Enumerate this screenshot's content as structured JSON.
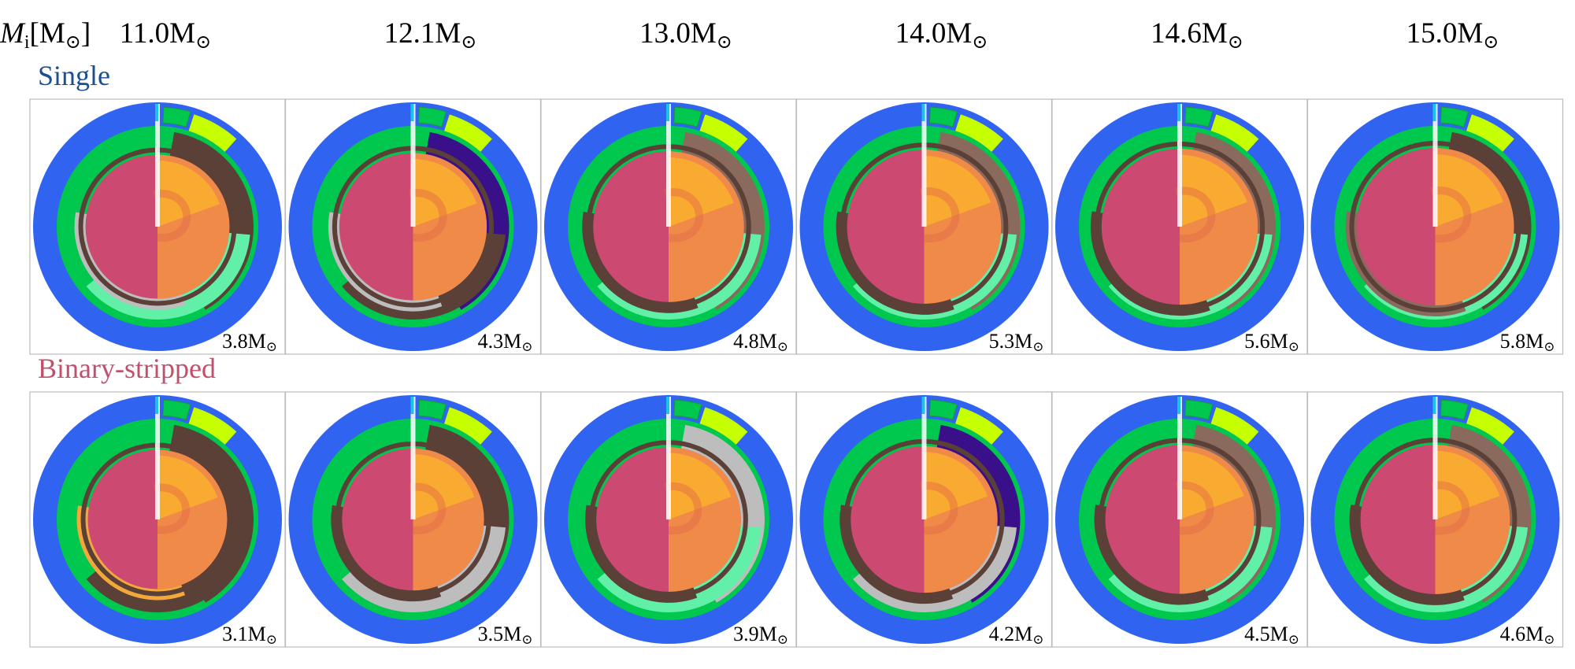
{
  "chart_data": {
    "type": "other",
    "description_type": "kippenhahn-style circular composition diagrams, one per model",
    "row_header": {
      "symbol": "M",
      "subscript": "i",
      "unit": "[M",
      "unit_sym": "⊙",
      "unit_close": "]"
    },
    "columns": [
      {
        "mass": 11.0,
        "label": "11.0M",
        "sun": "⊙"
      },
      {
        "mass": 12.1,
        "label": "12.1M",
        "sun": "⊙"
      },
      {
        "mass": 13.0,
        "label": "13.0M",
        "sun": "⊙"
      },
      {
        "mass": 14.0,
        "label": "14.0M",
        "sun": "⊙"
      },
      {
        "mass": 14.6,
        "label": "14.6M",
        "sun": "⊙"
      },
      {
        "mass": 15.0,
        "label": "15.0M",
        "sun": "⊙"
      }
    ],
    "rows": [
      {
        "name": "Single",
        "color": "#1b4f8f",
        "panels": [
          {
            "final_mass": 3.8,
            "label": "3.8M",
            "sun": "⊙",
            "shell_hi": "#5a4036",
            "shell_lo": "#62f0a8",
            "shell_mid": "#bdbdbd"
          },
          {
            "final_mass": 4.3,
            "label": "4.3M",
            "sun": "⊙",
            "shell_hi": "#3a0f8a",
            "shell_lo": "#5a4036",
            "shell_mid": "#bdbdbd"
          },
          {
            "final_mass": 4.8,
            "label": "4.8M",
            "sun": "⊙",
            "shell_hi": "#8a6a5c",
            "shell_lo": "#62f0a8",
            "shell_mid": "#5a4036"
          },
          {
            "final_mass": 5.3,
            "label": "5.3M",
            "sun": "⊙",
            "shell_hi": "#8a6a5c",
            "shell_lo": "#62f0a8",
            "shell_mid": "#5a4036"
          },
          {
            "final_mass": 5.6,
            "label": "5.6M",
            "sun": "⊙",
            "shell_hi": "#8a6a5c",
            "shell_lo": "#62f0a8",
            "shell_mid": "#5a4036"
          },
          {
            "final_mass": 5.8,
            "label": "5.8M",
            "sun": "⊙",
            "shell_hi": "#5a4036",
            "shell_lo": "#62f0a8",
            "shell_mid": "#8a6a5c"
          }
        ]
      },
      {
        "name": "Binary-stripped",
        "color": "#c0506b",
        "panels": [
          {
            "final_mass": 3.1,
            "label": "3.1M",
            "sun": "⊙",
            "shell_hi": "#5a4036",
            "shell_lo": "#5a4036",
            "shell_mid": "#f4a73a"
          },
          {
            "final_mass": 3.5,
            "label": "3.5M",
            "sun": "⊙",
            "shell_hi": "#5a4036",
            "shell_lo": "#bdbdbd",
            "shell_mid": "#5a4036"
          },
          {
            "final_mass": 3.9,
            "label": "3.9M",
            "sun": "⊙",
            "shell_hi": "#bdbdbd",
            "shell_lo": "#62f0a8",
            "shell_mid": "#5a4036"
          },
          {
            "final_mass": 4.2,
            "label": "4.2M",
            "sun": "⊙",
            "shell_hi": "#3a0f8a",
            "shell_lo": "#bdbdbd",
            "shell_mid": "#5a4036"
          },
          {
            "final_mass": 4.5,
            "label": "4.5M",
            "sun": "⊙",
            "shell_hi": "#8a6a5c",
            "shell_lo": "#62f0a8",
            "shell_mid": "#5a4036"
          },
          {
            "final_mass": 4.6,
            "label": "4.6M",
            "sun": "⊙",
            "shell_hi": "#8a6a5c",
            "shell_lo": "#62f0a8",
            "shell_mid": "#5a4036"
          }
        ]
      }
    ],
    "colors": {
      "envelope": "#2f63f0",
      "he_shell": "#00c84f",
      "core_left": "#cc4a72",
      "core_right": "#f08a48",
      "core_top": "#f9ad2e",
      "lime": "#c6ff00",
      "panel_border": "#bbbbbb"
    }
  }
}
